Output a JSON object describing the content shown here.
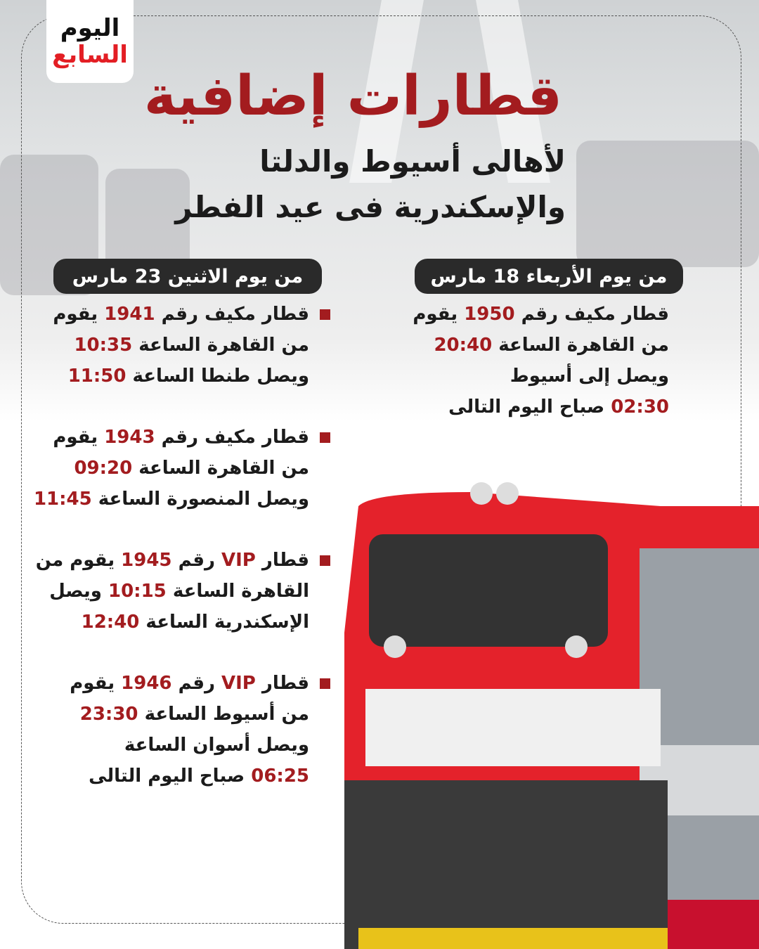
{
  "logo": {
    "line1": "اليوم",
    "line2": "السابع"
  },
  "title": "قطارات إضافية",
  "subtitle": [
    "لأهالى أسيوط والدلتا",
    "والإسكندرية فى عيد الفطر"
  ],
  "colors": {
    "accent": "#a31c1f",
    "pill": "#2a2a2a",
    "text": "#1b1b1b"
  },
  "right_column": {
    "header": "من يوم الأربعاء 18 مارس",
    "items": [
      {
        "lines": [
          [
            {
              "t": "قطار مكيف رقم "
            },
            {
              "t": "1950",
              "hl": true
            },
            {
              "t": " يقوم"
            }
          ],
          [
            {
              "t": "من القاهرة الساعة "
            },
            {
              "t": "20:40",
              "hl": true
            }
          ],
          [
            {
              "t": "ويصل إلى أسيوط"
            }
          ],
          [
            {
              "t": "02:30",
              "hl": true
            },
            {
              "t": " صباح اليوم التالى"
            }
          ]
        ]
      }
    ]
  },
  "left_column": {
    "header": "من يوم الاثنين 23 مارس",
    "items": [
      {
        "lines": [
          [
            {
              "t": "قطار مكيف رقم "
            },
            {
              "t": "1941",
              "hl": true
            },
            {
              "t": " يقوم"
            }
          ],
          [
            {
              "t": "من القاهرة الساعة "
            },
            {
              "t": "10:35",
              "hl": true
            }
          ],
          [
            {
              "t": "ويصل طنطا الساعة "
            },
            {
              "t": "11:50",
              "hl": true
            }
          ]
        ]
      },
      {
        "lines": [
          [
            {
              "t": "قطار مكيف رقم "
            },
            {
              "t": "1943",
              "hl": true
            },
            {
              "t": " يقوم"
            }
          ],
          [
            {
              "t": "من القاهرة الساعة "
            },
            {
              "t": "09:20",
              "hl": true
            }
          ],
          [
            {
              "t": "ويصل المنصورة الساعة "
            },
            {
              "t": "11:45",
              "hl": true
            }
          ]
        ]
      },
      {
        "lines": [
          [
            {
              "t": "قطار "
            },
            {
              "t": "VIP",
              "hl": true
            },
            {
              "t": " رقم "
            },
            {
              "t": "1945",
              "hl": true
            },
            {
              "t": " يقوم من"
            }
          ],
          [
            {
              "t": "القاهرة الساعة "
            },
            {
              "t": "10:15",
              "hl": true
            },
            {
              "t": " ويصل"
            }
          ],
          [
            {
              "t": "الإسكندرية الساعة "
            },
            {
              "t": "12:40",
              "hl": true
            }
          ]
        ]
      },
      {
        "lines": [
          [
            {
              "t": "قطار "
            },
            {
              "t": "VIP",
              "hl": true
            },
            {
              "t": " رقم "
            },
            {
              "t": "1946",
              "hl": true
            },
            {
              "t": " يقوم"
            }
          ],
          [
            {
              "t": "من أسيوط الساعة "
            },
            {
              "t": "23:30",
              "hl": true
            }
          ],
          [
            {
              "t": "ويصل أسوان الساعة"
            }
          ],
          [
            {
              "t": "06:25",
              "hl": true
            },
            {
              "t": " صباح اليوم التالى"
            }
          ]
        ]
      }
    ]
  }
}
